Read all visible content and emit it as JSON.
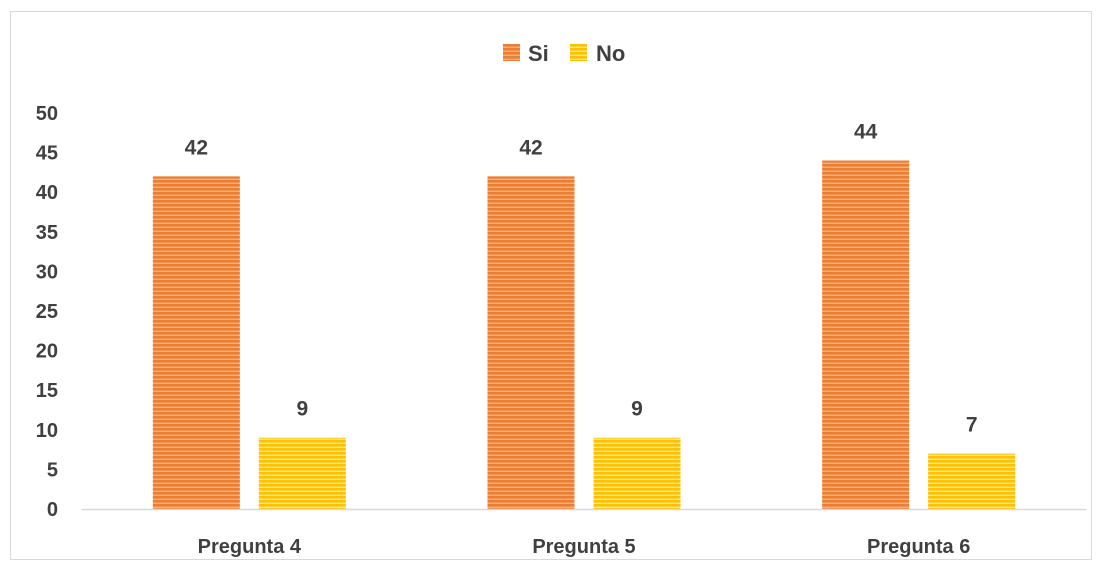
{
  "chart_data": {
    "type": "bar",
    "categories": [
      "Pregunta 4",
      "Pregunta 5",
      "Pregunta 6"
    ],
    "series": [
      {
        "name": "Si",
        "values": [
          42,
          42,
          44
        ],
        "color": "#ed7d31",
        "stripe": "#f4b183"
      },
      {
        "name": "No",
        "values": [
          9,
          9,
          7
        ],
        "color": "#ffc000",
        "stripe": "#ffe699"
      }
    ],
    "title": "",
    "xlabel": "",
    "ylabel": "",
    "ylim": [
      0,
      50
    ],
    "yticks": [
      0,
      5,
      10,
      15,
      20,
      25,
      30,
      35,
      40,
      45,
      50
    ],
    "grid": false,
    "legend_position": "top-center",
    "data_labels": true
  }
}
